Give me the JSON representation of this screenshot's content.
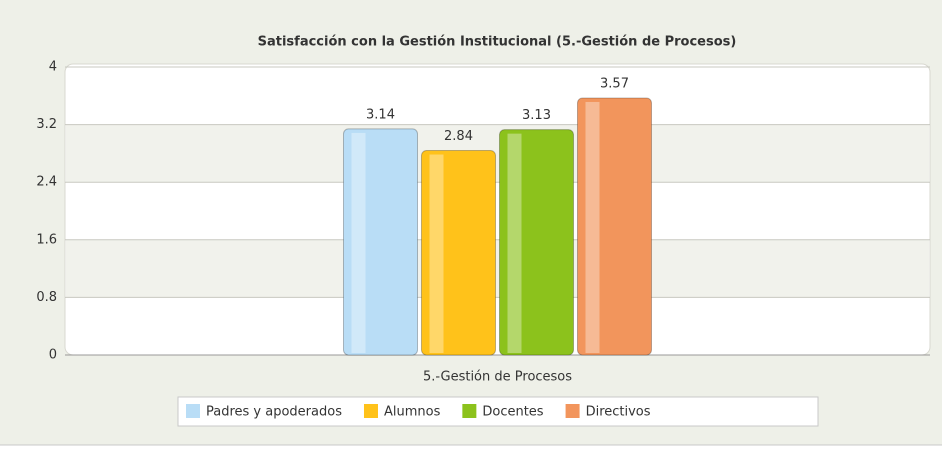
{
  "chart_data": {
    "type": "bar",
    "title": "Satisfacción con la Gestión Institucional (5.-Gestión de Procesos)",
    "categories": [
      "5.-Gestión de Procesos"
    ],
    "series": [
      {
        "name": "Padres y apoderados",
        "color": "#b9ddf6",
        "values": [
          3.14
        ]
      },
      {
        "name": "Alumnos",
        "color": "#ffc21a",
        "values": [
          2.84
        ]
      },
      {
        "name": "Docentes",
        "color": "#8cc21c",
        "values": [
          3.13
        ]
      },
      {
        "name": "Directivos",
        "color": "#f2955c",
        "values": [
          3.57
        ]
      }
    ],
    "ylim": [
      0,
      4
    ],
    "yticks": [
      0,
      0.8,
      1.6,
      2.4,
      3.2,
      4
    ],
    "grid": true,
    "legend": "bottom"
  }
}
